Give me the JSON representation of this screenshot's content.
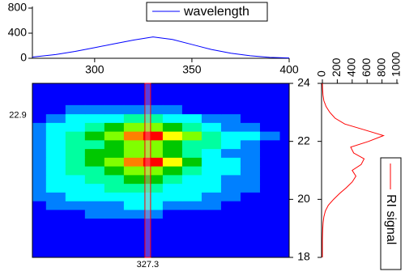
{
  "chart_data": [
    {
      "type": "line",
      "x": [
        268,
        280,
        290,
        300,
        310,
        320,
        330,
        340,
        350,
        360,
        370,
        380,
        390,
        400
      ],
      "series": [
        {
          "name": "wavelength",
          "color": "#0000ff",
          "values": [
            20,
            60,
            110,
            170,
            230,
            290,
            340,
            300,
            220,
            140,
            80,
            40,
            15,
            5
          ]
        }
      ],
      "xlim": [
        268,
        400
      ],
      "xticks": [
        300,
        350,
        400
      ],
      "ylim": [
        0,
        800
      ],
      "yticks": [
        0,
        400,
        800
      ]
    },
    {
      "type": "contour",
      "x": [
        270,
        280,
        290,
        300,
        310,
        320,
        330,
        340,
        350,
        360,
        370,
        380,
        390
      ],
      "y": [
        19.5,
        19.8,
        20.1,
        20.4,
        20.7,
        21.0,
        21.3,
        21.6,
        21.9,
        22.2,
        22.5,
        22.8,
        23.1
      ],
      "z": [
        [
          0,
          0,
          0,
          1,
          1,
          1,
          1,
          0,
          0,
          0,
          0,
          0,
          0
        ],
        [
          0,
          1,
          1,
          1,
          1,
          2,
          2,
          1,
          1,
          1,
          0,
          0,
          0
        ],
        [
          1,
          1,
          2,
          2,
          2,
          2,
          2,
          2,
          2,
          1,
          1,
          0,
          0
        ],
        [
          1,
          2,
          2,
          2,
          3,
          3,
          3,
          2,
          2,
          2,
          1,
          1,
          0
        ],
        [
          1,
          2,
          2,
          3,
          3,
          4,
          4,
          3,
          2,
          2,
          1,
          1,
          0
        ],
        [
          1,
          2,
          3,
          3,
          4,
          5,
          5,
          4,
          3,
          2,
          2,
          1,
          0
        ],
        [
          1,
          2,
          3,
          4,
          5,
          7,
          8,
          6,
          4,
          2,
          2,
          1,
          0
        ],
        [
          1,
          2,
          3,
          4,
          4,
          5,
          5,
          4,
          3,
          2,
          1,
          1,
          0
        ],
        [
          1,
          2,
          3,
          3,
          4,
          5,
          5,
          4,
          3,
          3,
          2,
          1,
          0
        ],
        [
          1,
          2,
          3,
          4,
          5,
          7,
          8,
          6,
          5,
          3,
          2,
          2,
          1
        ],
        [
          1,
          2,
          2,
          3,
          4,
          5,
          5,
          4,
          3,
          2,
          1,
          1,
          0
        ],
        [
          0,
          1,
          2,
          2,
          2,
          3,
          3,
          2,
          2,
          1,
          1,
          0,
          0
        ],
        [
          0,
          0,
          1,
          1,
          1,
          1,
          1,
          1,
          0,
          0,
          0,
          0,
          0
        ]
      ],
      "colors": [
        "#0000ff",
        "#0080ff",
        "#00ffff",
        "#00ffa0",
        "#00c800",
        "#80ff00",
        "#ffff00",
        "#ff8000",
        "#ff0000"
      ],
      "xlim": [
        268,
        400
      ],
      "ylim": [
        18,
        24
      ],
      "yticks": [
        18,
        20,
        22,
        24
      ],
      "cursor": {
        "x": 327.3,
        "y": 22.9,
        "color": "#ff0000"
      }
    },
    {
      "type": "line",
      "orientation": "vertical",
      "y": [
        18.0,
        18.2,
        18.4,
        18.6,
        18.8,
        19.0,
        19.2,
        19.4,
        19.6,
        19.8,
        20.0,
        20.2,
        20.4,
        20.6,
        20.8,
        21.0,
        21.2,
        21.4,
        21.6,
        21.8,
        22.0,
        22.2,
        22.4,
        22.6,
        22.8,
        23.0,
        23.2,
        23.4,
        23.6,
        23.8,
        24.0
      ],
      "series": [
        {
          "name": "RI signal",
          "color": "#ff0000",
          "values": [
            0,
            0,
            0,
            0,
            2,
            5,
            10,
            20,
            40,
            80,
            150,
            230,
            320,
            400,
            450,
            400,
            520,
            560,
            420,
            380,
            620,
            820,
            560,
            300,
            170,
            100,
            50,
            20,
            8,
            3,
            0
          ]
        }
      ],
      "xlim": [
        0,
        1000
      ],
      "xticks": [
        0,
        200,
        400,
        600,
        800,
        1000
      ],
      "ylim": [
        18,
        24
      ]
    }
  ]
}
